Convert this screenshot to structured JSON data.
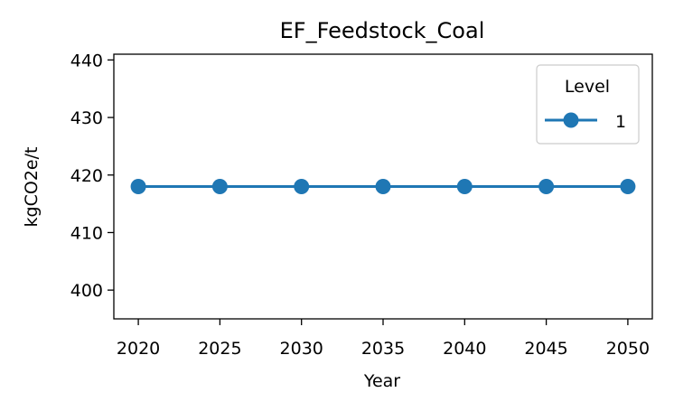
{
  "chart_data": {
    "type": "line",
    "title": "EF_Feedstock_Coal",
    "xlabel": "Year",
    "ylabel": "kgCO2e/t",
    "x": [
      2020,
      2025,
      2030,
      2035,
      2040,
      2045,
      2050
    ],
    "xlim": [
      2018.5,
      2051.5
    ],
    "ylim": [
      395,
      441
    ],
    "xticks": [
      2020,
      2025,
      2030,
      2035,
      2040,
      2045,
      2050
    ],
    "yticks": [
      400,
      410,
      420,
      430,
      440
    ],
    "grid": false,
    "legend": {
      "title": "Level",
      "placement": "top-right"
    },
    "series": [
      {
        "name": "1",
        "color": "#1f77b4",
        "marker": "circle",
        "values": [
          418,
          418,
          418,
          418,
          418,
          418,
          418
        ]
      }
    ]
  }
}
